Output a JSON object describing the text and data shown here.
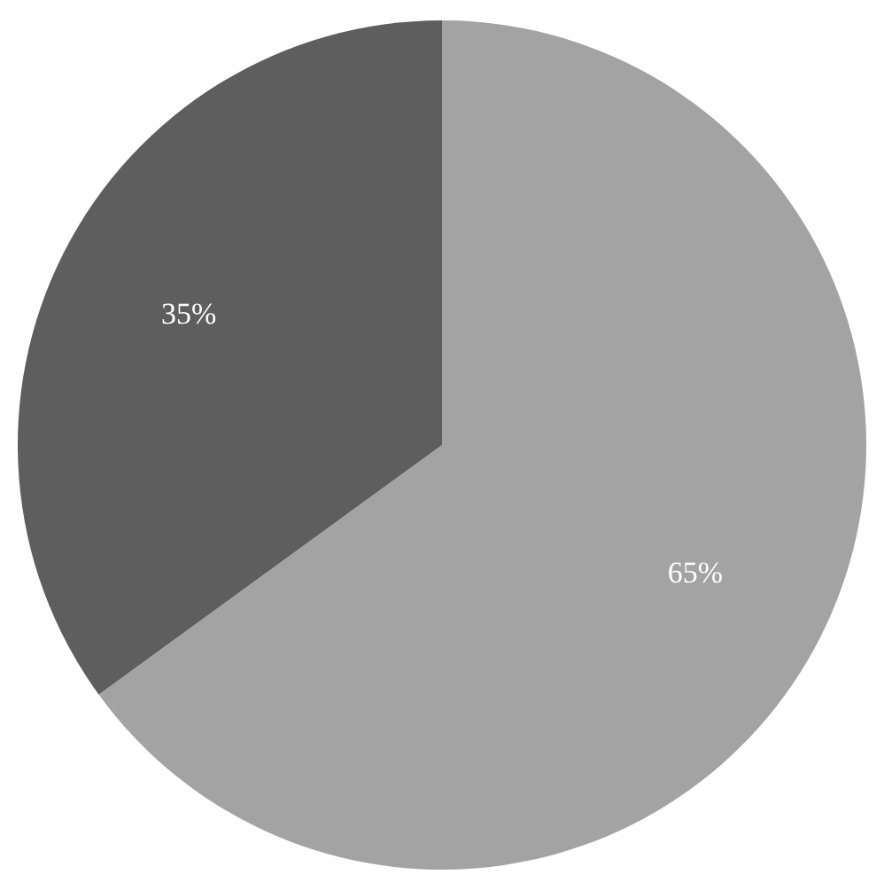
{
  "chart_data": {
    "type": "pie",
    "categories": [
      null,
      null
    ],
    "values": [
      65,
      35
    ],
    "colors": [
      "#a3a3a3",
      "#5e5e5e"
    ],
    "value_labels": [
      "65%",
      "35%"
    ]
  }
}
